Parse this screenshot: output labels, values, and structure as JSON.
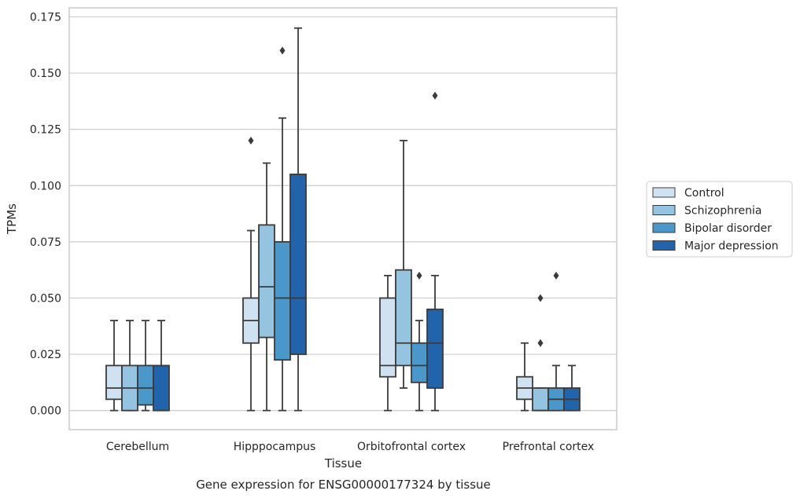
{
  "chart_data": {
    "type": "box",
    "title": "Gene expression for ENSG00000177324 by tissue",
    "xlabel": "Tissue",
    "ylabel": "TPMs",
    "ylim": [
      -0.0085,
      0.179
    ],
    "yticks": [
      "0.000",
      "0.025",
      "0.050",
      "0.075",
      "0.100",
      "0.125",
      "0.150",
      "0.175"
    ],
    "grid": true,
    "legend_position": "right",
    "categories": [
      "Cerebellum",
      "Hipppocampus",
      "Orbitofrontal cortex",
      "Prefrontal cortex"
    ],
    "series": [
      {
        "name": "Control",
        "color": "#d0e1f2",
        "boxes": [
          {
            "whisker_low": 0.0,
            "q1": 0.005,
            "median": 0.01,
            "q3": 0.02,
            "whisker_high": 0.04,
            "outliers": []
          },
          {
            "whisker_low": 0.0,
            "q1": 0.03,
            "median": 0.04,
            "q3": 0.05,
            "whisker_high": 0.08,
            "outliers": [
              0.12
            ]
          },
          {
            "whisker_low": 0.0,
            "q1": 0.015,
            "median": 0.02,
            "q3": 0.05,
            "whisker_high": 0.06,
            "outliers": []
          },
          {
            "whisker_low": 0.0,
            "q1": 0.005,
            "median": 0.01,
            "q3": 0.015,
            "whisker_high": 0.03,
            "outliers": []
          }
        ]
      },
      {
        "name": "Schizophrenia",
        "color": "#94c4df",
        "boxes": [
          {
            "whisker_low": 0.0,
            "q1": 0.0,
            "median": 0.01,
            "q3": 0.02,
            "whisker_high": 0.04,
            "outliers": []
          },
          {
            "whisker_low": 0.0,
            "q1": 0.0325,
            "median": 0.055,
            "q3": 0.0825,
            "whisker_high": 0.11,
            "outliers": []
          },
          {
            "whisker_low": 0.01,
            "q1": 0.02,
            "median": 0.03,
            "q3": 0.0625,
            "whisker_high": 0.12,
            "outliers": []
          },
          {
            "whisker_low": 0.0,
            "q1": 0.0,
            "median": 0.0,
            "q3": 0.01,
            "whisker_high": 0.01,
            "outliers": [
              0.03,
              0.05
            ]
          }
        ]
      },
      {
        "name": "Bipolar disorder",
        "color": "#4a98c9",
        "boxes": [
          {
            "whisker_low": 0.0,
            "q1": 0.0025,
            "median": 0.01,
            "q3": 0.02,
            "whisker_high": 0.04,
            "outliers": []
          },
          {
            "whisker_low": 0.0,
            "q1": 0.0225,
            "median": 0.05,
            "q3": 0.075,
            "whisker_high": 0.13,
            "outliers": [
              0.16
            ]
          },
          {
            "whisker_low": 0.0,
            "q1": 0.0125,
            "median": 0.02,
            "q3": 0.03,
            "whisker_high": 0.04,
            "outliers": [
              0.06
            ]
          },
          {
            "whisker_low": 0.0,
            "q1": 0.0,
            "median": 0.005,
            "q3": 0.01,
            "whisker_high": 0.02,
            "outliers": [
              0.06
            ]
          }
        ]
      },
      {
        "name": "Major depression",
        "color": "#2164ab",
        "boxes": [
          {
            "whisker_low": 0.0,
            "q1": 0.0,
            "median": 0.02,
            "q3": 0.02,
            "whisker_high": 0.04,
            "outliers": []
          },
          {
            "whisker_low": 0.0,
            "q1": 0.025,
            "median": 0.05,
            "q3": 0.105,
            "whisker_high": 0.17,
            "outliers": []
          },
          {
            "whisker_low": 0.0,
            "q1": 0.01,
            "median": 0.03,
            "q3": 0.045,
            "whisker_high": 0.06,
            "outliers": [
              0.14
            ]
          },
          {
            "whisker_low": 0.0,
            "q1": 0.0,
            "median": 0.005,
            "q3": 0.01,
            "whisker_high": 0.02,
            "outliers": []
          }
        ]
      }
    ]
  }
}
